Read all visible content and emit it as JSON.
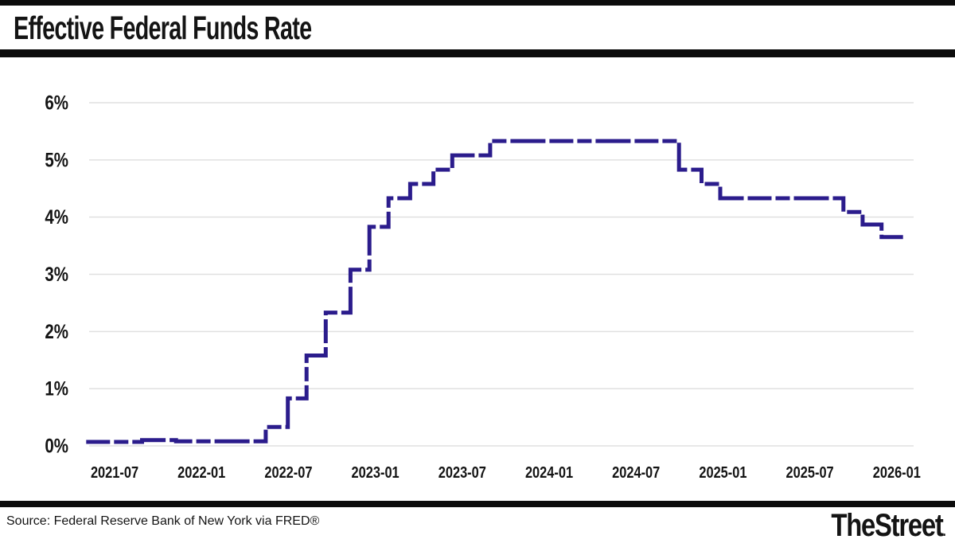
{
  "header": {
    "title": "Effective Federal Funds Rate"
  },
  "footer": {
    "source": "Source: Federal Reserve Bank of New York via FRED®",
    "brand": "TheStreet",
    "brand_dot": "."
  },
  "colors": {
    "line": "#2b1c8c",
    "grid": "#e0e0e0",
    "bars": "#0c0c0c",
    "text": "#141414"
  },
  "chart_data": {
    "type": "line",
    "step": true,
    "dashed": true,
    "title": "Effective Federal Funds Rate",
    "xlabel": "",
    "ylabel": "",
    "legend": "none",
    "grid": "horizontal-only",
    "ylim": [
      0,
      6.2
    ],
    "y_ticks": [
      {
        "value": 0,
        "label": "0%"
      },
      {
        "value": 1,
        "label": "1%"
      },
      {
        "value": 2,
        "label": "2%"
      },
      {
        "value": 3,
        "label": "3%"
      },
      {
        "value": 4,
        "label": "4%"
      },
      {
        "value": 5,
        "label": "5%"
      },
      {
        "value": 6,
        "label": "6%"
      }
    ],
    "x_tick_labels": [
      "2021-07",
      "2022-01",
      "2022-07",
      "2023-01",
      "2023-07",
      "2024-01",
      "2024-07",
      "2025-01",
      "2025-07",
      "2026-01"
    ],
    "series": [
      {
        "name": "Effective Federal Funds Rate (%)",
        "points": [
          {
            "date": "2021-02-15",
            "value": 0.07
          },
          {
            "date": "2021-06-17",
            "value": 0.1
          },
          {
            "date": "2021-09-01",
            "value": 0.08
          },
          {
            "date": "2022-03-17",
            "value": 0.33
          },
          {
            "date": "2022-05-05",
            "value": 0.83
          },
          {
            "date": "2022-06-16",
            "value": 1.58
          },
          {
            "date": "2022-07-28",
            "value": 2.33
          },
          {
            "date": "2022-09-22",
            "value": 3.08
          },
          {
            "date": "2022-11-03",
            "value": 3.83
          },
          {
            "date": "2022-12-15",
            "value": 4.33
          },
          {
            "date": "2023-02-02",
            "value": 4.58
          },
          {
            "date": "2023-03-23",
            "value": 4.83
          },
          {
            "date": "2023-05-04",
            "value": 5.08
          },
          {
            "date": "2023-07-27",
            "value": 5.33
          },
          {
            "date": "2024-09-19",
            "value": 4.83
          },
          {
            "date": "2024-11-08",
            "value": 4.58
          },
          {
            "date": "2024-12-19",
            "value": 4.33
          },
          {
            "date": "2025-09-18",
            "value": 4.09
          },
          {
            "date": "2025-10-30",
            "value": 3.87
          },
          {
            "date": "2025-12-11",
            "value": 3.65
          }
        ],
        "end_date": "2026-02-01"
      }
    ]
  }
}
